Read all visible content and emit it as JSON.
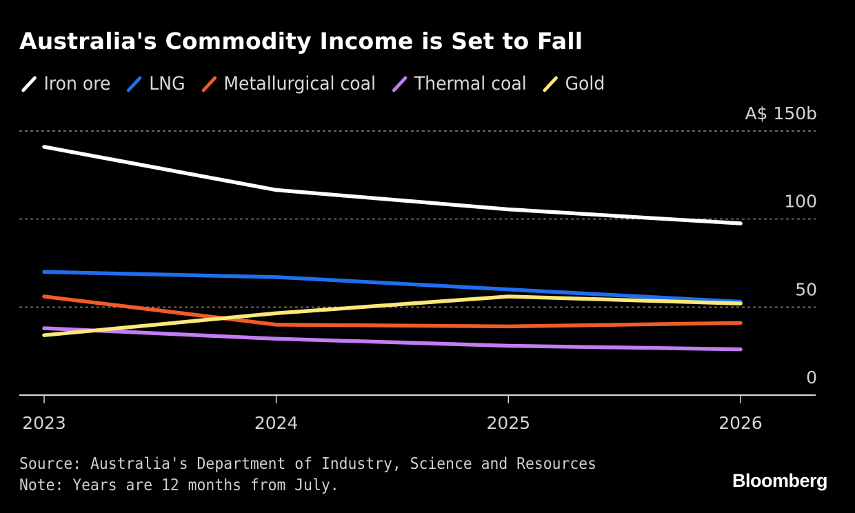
{
  "chart_data": {
    "type": "line",
    "title": "Australia's Commodity Income is Set to Fall",
    "x": [
      "2023",
      "2024",
      "2025",
      "2026"
    ],
    "xlabel": "",
    "ylabel": "",
    "ylim": [
      0,
      150
    ],
    "yticks": [
      0,
      50,
      100,
      150
    ],
    "ytick_labels": [
      "0",
      "50",
      "100",
      "A$ 150b"
    ],
    "y_axis_side": "right",
    "grid": "horizontal dotted",
    "legend_position": "top-left",
    "series": [
      {
        "name": "Iron ore",
        "color": "#ffffff",
        "values": [
          141,
          116.5,
          105.5,
          97.5
        ]
      },
      {
        "name": "LNG",
        "color": "#1f6ef2",
        "values": [
          70,
          67,
          60,
          53
        ]
      },
      {
        "name": "Metallurgical coal",
        "color": "#f25a2a",
        "values": [
          56,
          40,
          39,
          41
        ]
      },
      {
        "name": "Thermal coal",
        "color": "#c47cf5",
        "values": [
          38,
          32,
          28,
          26
        ]
      },
      {
        "name": "Gold",
        "color": "#fbe878",
        "values": [
          34,
          46.5,
          56,
          52
        ]
      }
    ]
  },
  "footer": {
    "source": "Source: Australia's Department of Industry, Science and Resources",
    "note": "Note: Years are 12 months from July.",
    "brand": "Bloomberg"
  }
}
